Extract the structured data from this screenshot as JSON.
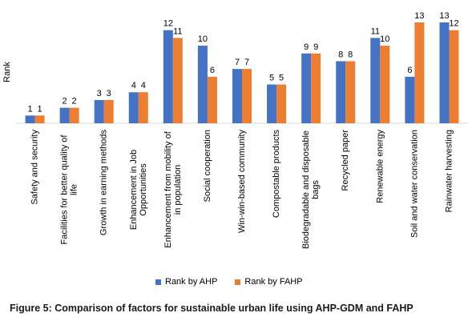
{
  "chart_data": {
    "type": "bar",
    "ylabel": "Rank",
    "categories": [
      [
        "Safety and security"
      ],
      [
        "Facilities for better quality of",
        "life"
      ],
      [
        "Growth in earning methods"
      ],
      [
        "Enhancement in Job",
        "Opportunities"
      ],
      [
        "Enhancement from mobility of",
        "in population"
      ],
      [
        "Social cooperation"
      ],
      [
        "Win-win-based community"
      ],
      [
        "Compostable products"
      ],
      [
        "Biodegradable and disposable",
        "bags"
      ],
      [
        "Recycled paper"
      ],
      [
        "Renewable energy"
      ],
      [
        "Soil and water conservation"
      ],
      [
        "Rainwater harvesting"
      ]
    ],
    "series": [
      {
        "name": "Rank by AHP",
        "color": "#4472C4",
        "values": [
          1,
          2,
          3,
          4,
          12,
          10,
          7,
          5,
          9,
          8,
          11,
          6,
          13
        ]
      },
      {
        "name": "Rank by FAHP",
        "color": "#ED7D31",
        "values": [
          1,
          2,
          3,
          4,
          11,
          6,
          7,
          5,
          9,
          8,
          10,
          13,
          12
        ]
      }
    ],
    "ylim": [
      0,
      13
    ],
    "grid": false,
    "legend": "bottom"
  },
  "caption": "Figure 5: Comparison of factors for sustainable urban life using AHP-GDM and FAHP"
}
